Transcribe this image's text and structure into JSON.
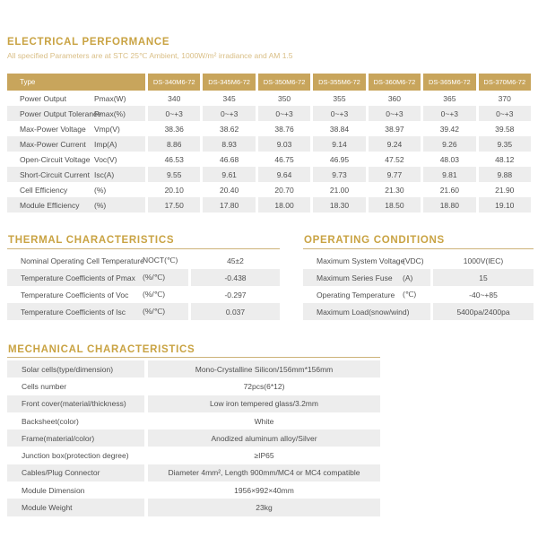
{
  "colors": {
    "gold_header": "#c8a55c",
    "gold_title": "#c9a343",
    "gold_subtitle": "#d9be85",
    "gold_rule": "#cdb278",
    "stripe_gray": "#ededed",
    "text_gray": "#4f4f4f",
    "header_text": "#ffffff"
  },
  "electrical": {
    "title": "ELECTRICAL PERFORMANCE",
    "subtitle": "All specified Parameters are at STC 25℃ Ambient, 1000W/m² irradiance and AM 1.5",
    "header": {
      "type_label": "Type",
      "models": [
        "DS-340M6-72",
        "DS-345M6-72",
        "DS-350M6-72",
        "DS-355M6-72",
        "DS-360M6-72",
        "DS-365M6-72",
        "DS-370M6-72"
      ]
    },
    "rows": [
      {
        "label": "Power Output",
        "unit": "Pmax(W)",
        "values": [
          "340",
          "345",
          "350",
          "355",
          "360",
          "365",
          "370"
        ]
      },
      {
        "label": "Power Output Tolerance",
        "unit": "Pmax(%)",
        "values": [
          "0~+3",
          "0~+3",
          "0~+3",
          "0~+3",
          "0~+3",
          "0~+3",
          "0~+3"
        ]
      },
      {
        "label": "Max-Power Voltage",
        "unit": "Vmp(V)",
        "values": [
          "38.36",
          "38.62",
          "38.76",
          "38.84",
          "38.97",
          "39.42",
          "39.58"
        ]
      },
      {
        "label": "Max-Power Current",
        "unit": "Imp(A)",
        "values": [
          "8.86",
          "8.93",
          "9.03",
          "9.14",
          "9.24",
          "9.26",
          "9.35"
        ]
      },
      {
        "label": "Open-Circuit Voltage",
        "unit": "Voc(V)",
        "values": [
          "46.53",
          "46.68",
          "46.75",
          "46.95",
          "47.52",
          "48.03",
          "48.12"
        ]
      },
      {
        "label": "Short-Circuit Current",
        "unit": "Isc(A)",
        "values": [
          "9.55",
          "9.61",
          "9.64",
          "9.73",
          "9.77",
          "9.81",
          "9.88"
        ]
      },
      {
        "label": "Cell Efficiency",
        "unit": "(%)",
        "values": [
          "20.10",
          "20.40",
          "20.70",
          "21.00",
          "21.30",
          "21.60",
          "21.90"
        ]
      },
      {
        "label": "Module Efficiency",
        "unit": "(%)",
        "values": [
          "17.50",
          "17.80",
          "18.00",
          "18.30",
          "18.50",
          "18.80",
          "19.10"
        ]
      }
    ]
  },
  "thermal": {
    "title": "THERMAL CHARACTERISTICS",
    "rows": [
      {
        "label": "Nominal Operating Cell Temperature",
        "unit": "NOCT(℃)",
        "value": "45±2"
      },
      {
        "label": "Temperature Coefficients of Pmax",
        "unit": "(%/℃)",
        "value": "-0.438"
      },
      {
        "label": "Temperature Coefficients of Voc",
        "unit": "(%/℃)",
        "value": "-0.297"
      },
      {
        "label": "Temperature Coefficients of Isc",
        "unit": "(%/℃)",
        "value": "0.037"
      }
    ]
  },
  "operating": {
    "title": "OPERATING CONDITIONS",
    "rows": [
      {
        "label": "Maximum System Voltage",
        "unit": "(VDC)",
        "value": "1000V(IEC)"
      },
      {
        "label": "Maximum Series Fuse",
        "unit": "(A)",
        "value": "15"
      },
      {
        "label": "Operating Temperature",
        "unit": "(℃)",
        "value": "-40~+85"
      },
      {
        "label": "Maximum Load(snow/wind)",
        "unit": "",
        "value": "5400pa/2400pa"
      }
    ]
  },
  "mechanical": {
    "title": "MECHANICAL CHARACTERISTICS",
    "rows": [
      {
        "label": "Solar cells(type/dimension)",
        "value": "Mono-Crystalline Silicon/156mm*156mm"
      },
      {
        "label": "Cells number",
        "value": "72pcs(6*12)"
      },
      {
        "label": "Front cover(material/thickness)",
        "value": "Low iron tempered glass/3.2mm"
      },
      {
        "label": "Backsheet(color)",
        "value": "White"
      },
      {
        "label": "Frame(material/color)",
        "value": "Anodized aluminum alloy/Silver"
      },
      {
        "label": "Junction box(protection degree)",
        "value": "≥IP65"
      },
      {
        "label": "Cables/Plug Connector",
        "value": "Diameter 4mm², Length 900mm/MC4 or MC4 compatible"
      },
      {
        "label": "Module Dimension",
        "value": "1956×992×40mm"
      },
      {
        "label": "Module Weight",
        "value": "23kg"
      }
    ]
  }
}
